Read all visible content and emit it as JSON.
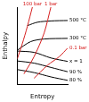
{
  "chart_data": {
    "type": "line",
    "x_label": "Entropy",
    "y_label": "Enthalpy",
    "xlim": [
      6,
      9
    ],
    "ylim": [
      2000,
      3800
    ],
    "grid": false,
    "tick_labels": false,
    "series": [
      {
        "name": "100 bar",
        "color": "#d62020",
        "x": [
          6.0,
          6.3,
          6.6,
          6.9
        ],
        "values": [
          2600,
          2950,
          3350,
          3800
        ]
      },
      {
        "name": "1 bar",
        "color": "#d62020",
        "x": [
          6.4,
          7.0,
          7.6,
          8.0
        ],
        "values": [
          2250,
          2650,
          3200,
          3800
        ]
      },
      {
        "name": "0.1 bar",
        "color": "#d62020",
        "x": [
          7.0,
          7.8,
          8.5,
          9.0
        ],
        "values": [
          2150,
          2450,
          2650,
          2850
        ]
      },
      {
        "name": "500 °C",
        "color": "#000000",
        "x": [
          6.6,
          7.2,
          8.0,
          9.0
        ],
        "values": [
          3370,
          3450,
          3480,
          3490
        ]
      },
      {
        "name": "300 °C",
        "color": "#000000",
        "x": [
          6.0,
          6.8,
          7.6,
          9.0
        ],
        "values": [
          2800,
          3000,
          3060,
          3075
        ]
      },
      {
        "name": "x = 1",
        "color": "#000000",
        "x": [
          6.0,
          7.0,
          8.0,
          9.0
        ],
        "values": [
          2780,
          2750,
          2620,
          2540
        ]
      },
      {
        "name": "90 %",
        "color": "#000000",
        "x": [
          6.0,
          7.0,
          8.0,
          9.0
        ],
        "values": [
          2550,
          2500,
          2400,
          2300
        ]
      },
      {
        "name": "80 %",
        "color": "#000000",
        "x": [
          6.0,
          7.0,
          8.0,
          9.0
        ],
        "values": [
          2350,
          2280,
          2180,
          2100
        ]
      }
    ]
  }
}
